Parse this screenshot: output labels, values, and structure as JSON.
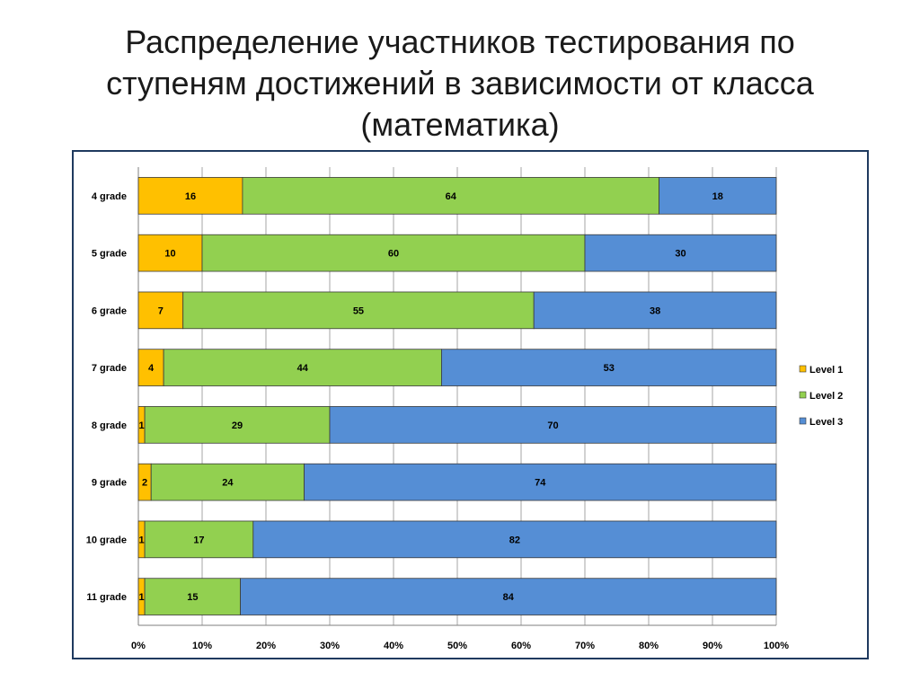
{
  "slide": {
    "title_lines": [
      "Распределение участников тестирования по",
      "ступеням достижений в зависимости от класса",
      "(математика)"
    ]
  },
  "chart_data": {
    "type": "bar",
    "orientation": "horizontal",
    "stacked": "percent",
    "categories": [
      "4 grade",
      "5 grade",
      "6 grade",
      "7 grade",
      "8 grade",
      "9 grade",
      "10 grade",
      "11 grade"
    ],
    "series": [
      {
        "name": "Level 1",
        "color": "#FFC000",
        "values": [
          16,
          10,
          7,
          4,
          1,
          2,
          1,
          1
        ]
      },
      {
        "name": "Level 2",
        "color": "#92D050",
        "values": [
          64,
          60,
          55,
          44,
          29,
          24,
          17,
          15
        ]
      },
      {
        "name": "Level 3",
        "color": "#558ED5",
        "values": [
          18,
          30,
          38,
          53,
          70,
          74,
          82,
          84
        ]
      }
    ],
    "x_ticks": [
      "0%",
      "10%",
      "20%",
      "30%",
      "40%",
      "50%",
      "60%",
      "70%",
      "80%",
      "90%",
      "100%"
    ],
    "xlim": [
      0,
      100
    ],
    "grid": true,
    "legend_position": "right"
  }
}
